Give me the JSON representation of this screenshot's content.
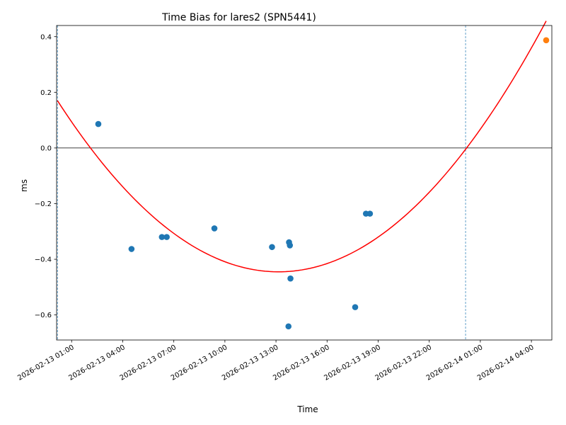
{
  "chart_data": {
    "type": "scatter",
    "title": "Time Bias for lares2 (SPN5441)",
    "xlabel": "Time",
    "ylabel": "ms",
    "xlim": [
      "2026-02-13T00:07",
      "2026-02-14T05:12"
    ],
    "ylim": [
      -0.69,
      0.44
    ],
    "x_ticks": [
      {
        "t": "2026-02-13T01:00",
        "label": "2026-02-13 01:00"
      },
      {
        "t": "2026-02-13T04:00",
        "label": "2026-02-13 04:00"
      },
      {
        "t": "2026-02-13T07:00",
        "label": "2026-02-13 07:00"
      },
      {
        "t": "2026-02-13T10:00",
        "label": "2026-02-13 10:00"
      },
      {
        "t": "2026-02-13T13:00",
        "label": "2026-02-13 13:00"
      },
      {
        "t": "2026-02-13T16:00",
        "label": "2026-02-13 16:00"
      },
      {
        "t": "2026-02-13T19:00",
        "label": "2026-02-13 19:00"
      },
      {
        "t": "2026-02-13T22:00",
        "label": "2026-02-13 22:00"
      },
      {
        "t": "2026-02-14T01:00",
        "label": "2026-02-14 01:00"
      },
      {
        "t": "2026-02-14T04:00",
        "label": "2026-02-14 04:00"
      }
    ],
    "y_ticks": [
      {
        "v": 0.4,
        "label": "0.4"
      },
      {
        "v": 0.2,
        "label": "0.2"
      },
      {
        "v": 0.0,
        "label": "0.0"
      },
      {
        "v": -0.2,
        "label": "−0.2"
      },
      {
        "v": -0.4,
        "label": "−0.4"
      },
      {
        "v": -0.6,
        "label": "−0.6"
      }
    ],
    "series": [
      {
        "color": "#1f77b4",
        "points": [
          {
            "x": "2026-02-13T02:34",
            "y": 0.086
          },
          {
            "x": "2026-02-13T04:31",
            "y": -0.363
          },
          {
            "x": "2026-02-13T06:18",
            "y": -0.32
          },
          {
            "x": "2026-02-13T06:35",
            "y": -0.32
          },
          {
            "x": "2026-02-13T09:23",
            "y": -0.289
          },
          {
            "x": "2026-02-13T12:46",
            "y": -0.356
          },
          {
            "x": "2026-02-13T13:44",
            "y": -0.641
          },
          {
            "x": "2026-02-13T13:46",
            "y": -0.339
          },
          {
            "x": "2026-02-13T13:49",
            "y": -0.35
          },
          {
            "x": "2026-02-13T13:51",
            "y": -0.469
          },
          {
            "x": "2026-02-13T17:39",
            "y": -0.572
          },
          {
            "x": "2026-02-13T18:17",
            "y": -0.236
          },
          {
            "x": "2026-02-13T18:31",
            "y": -0.236
          }
        ]
      },
      {
        "color": "#ff7f0e",
        "points": [
          {
            "x": "2026-02-14T04:52",
            "y": 0.387
          }
        ]
      }
    ],
    "fit_curve": {
      "type": "quadratic",
      "color": "#ff0000",
      "x_start": "2026-02-13T00:10",
      "x_end": "2026-02-14T04:52",
      "y_start": 0.17,
      "vertex_x": "2026-02-13T13:09",
      "vertex_y": -0.445
    },
    "vertical_lines": [
      {
        "x": "2026-02-13T00:10",
        "color": "#1f77b4",
        "style": "dashed"
      },
      {
        "x": "2026-02-14T00:08",
        "color": "#1f77b4",
        "style": "dashed"
      }
    ],
    "horizontal_lines": [
      {
        "y": 0.0,
        "color": "#000000"
      }
    ],
    "grid": false,
    "legend": "none"
  }
}
